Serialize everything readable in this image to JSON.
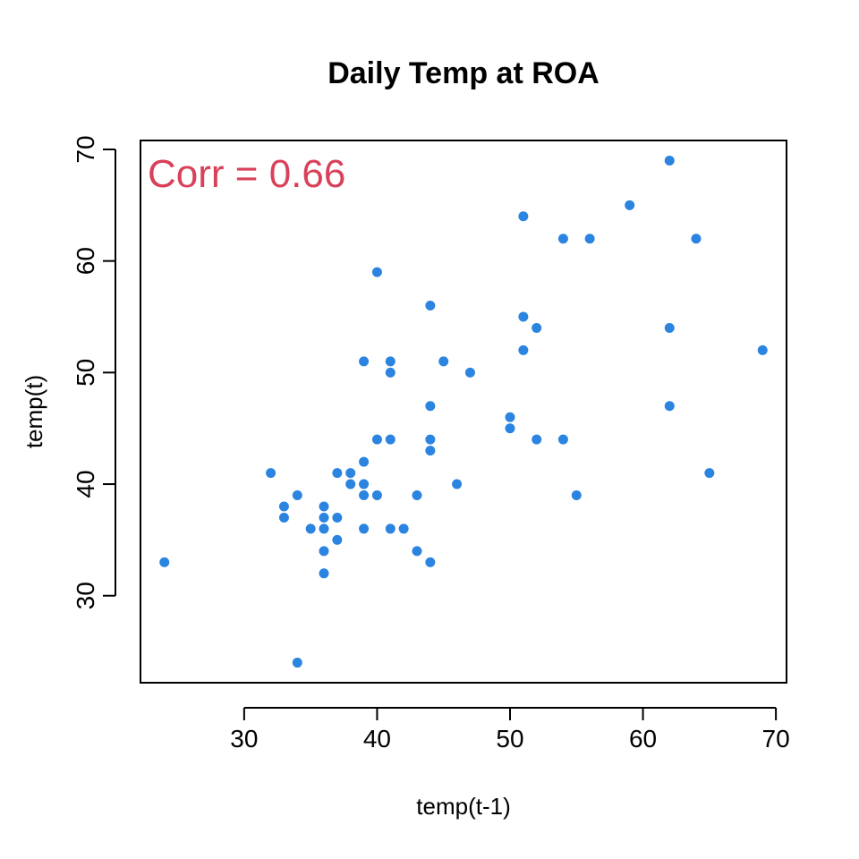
{
  "chart_data": {
    "type": "scatter",
    "title": "Daily Temp at ROA",
    "xlabel": "temp(t-1)",
    "ylabel": "temp(t)",
    "xlim": [
      22.2,
      70.8
    ],
    "ylim": [
      22.2,
      70.8
    ],
    "x_ticks": [
      30,
      40,
      50,
      60,
      70
    ],
    "y_ticks": [
      30,
      40,
      50,
      60,
      70
    ],
    "grid": false,
    "point_color": "#2B84E0",
    "annotation": {
      "text": "Corr = 0.66",
      "color": "#D9415A"
    },
    "points": [
      [
        24,
        33
      ],
      [
        32,
        41
      ],
      [
        33,
        38
      ],
      [
        33,
        37
      ],
      [
        34,
        39
      ],
      [
        34,
        24
      ],
      [
        35,
        36
      ],
      [
        36,
        38
      ],
      [
        36,
        37
      ],
      [
        36,
        36
      ],
      [
        36,
        34
      ],
      [
        36,
        32
      ],
      [
        37,
        41
      ],
      [
        37,
        37
      ],
      [
        37,
        35
      ],
      [
        38,
        41
      ],
      [
        38,
        40
      ],
      [
        39,
        51
      ],
      [
        39,
        42
      ],
      [
        39,
        40
      ],
      [
        39,
        39
      ],
      [
        39,
        36
      ],
      [
        40,
        59
      ],
      [
        40,
        44
      ],
      [
        40,
        39
      ],
      [
        41,
        51
      ],
      [
        41,
        50
      ],
      [
        41,
        44
      ],
      [
        41,
        36
      ],
      [
        42,
        36
      ],
      [
        43,
        39
      ],
      [
        43,
        34
      ],
      [
        44,
        56
      ],
      [
        44,
        47
      ],
      [
        44,
        44
      ],
      [
        44,
        43
      ],
      [
        44,
        33
      ],
      [
        45,
        51
      ],
      [
        46,
        40
      ],
      [
        47,
        50
      ],
      [
        50,
        46
      ],
      [
        50,
        45
      ],
      [
        51,
        64
      ],
      [
        51,
        55
      ],
      [
        51,
        52
      ],
      [
        52,
        54
      ],
      [
        52,
        44
      ],
      [
        54,
        62
      ],
      [
        54,
        44
      ],
      [
        55,
        39
      ],
      [
        56,
        62
      ],
      [
        59,
        65
      ],
      [
        62,
        69
      ],
      [
        62,
        54
      ],
      [
        62,
        47
      ],
      [
        64,
        62
      ],
      [
        65,
        41
      ],
      [
        69,
        52
      ]
    ]
  }
}
